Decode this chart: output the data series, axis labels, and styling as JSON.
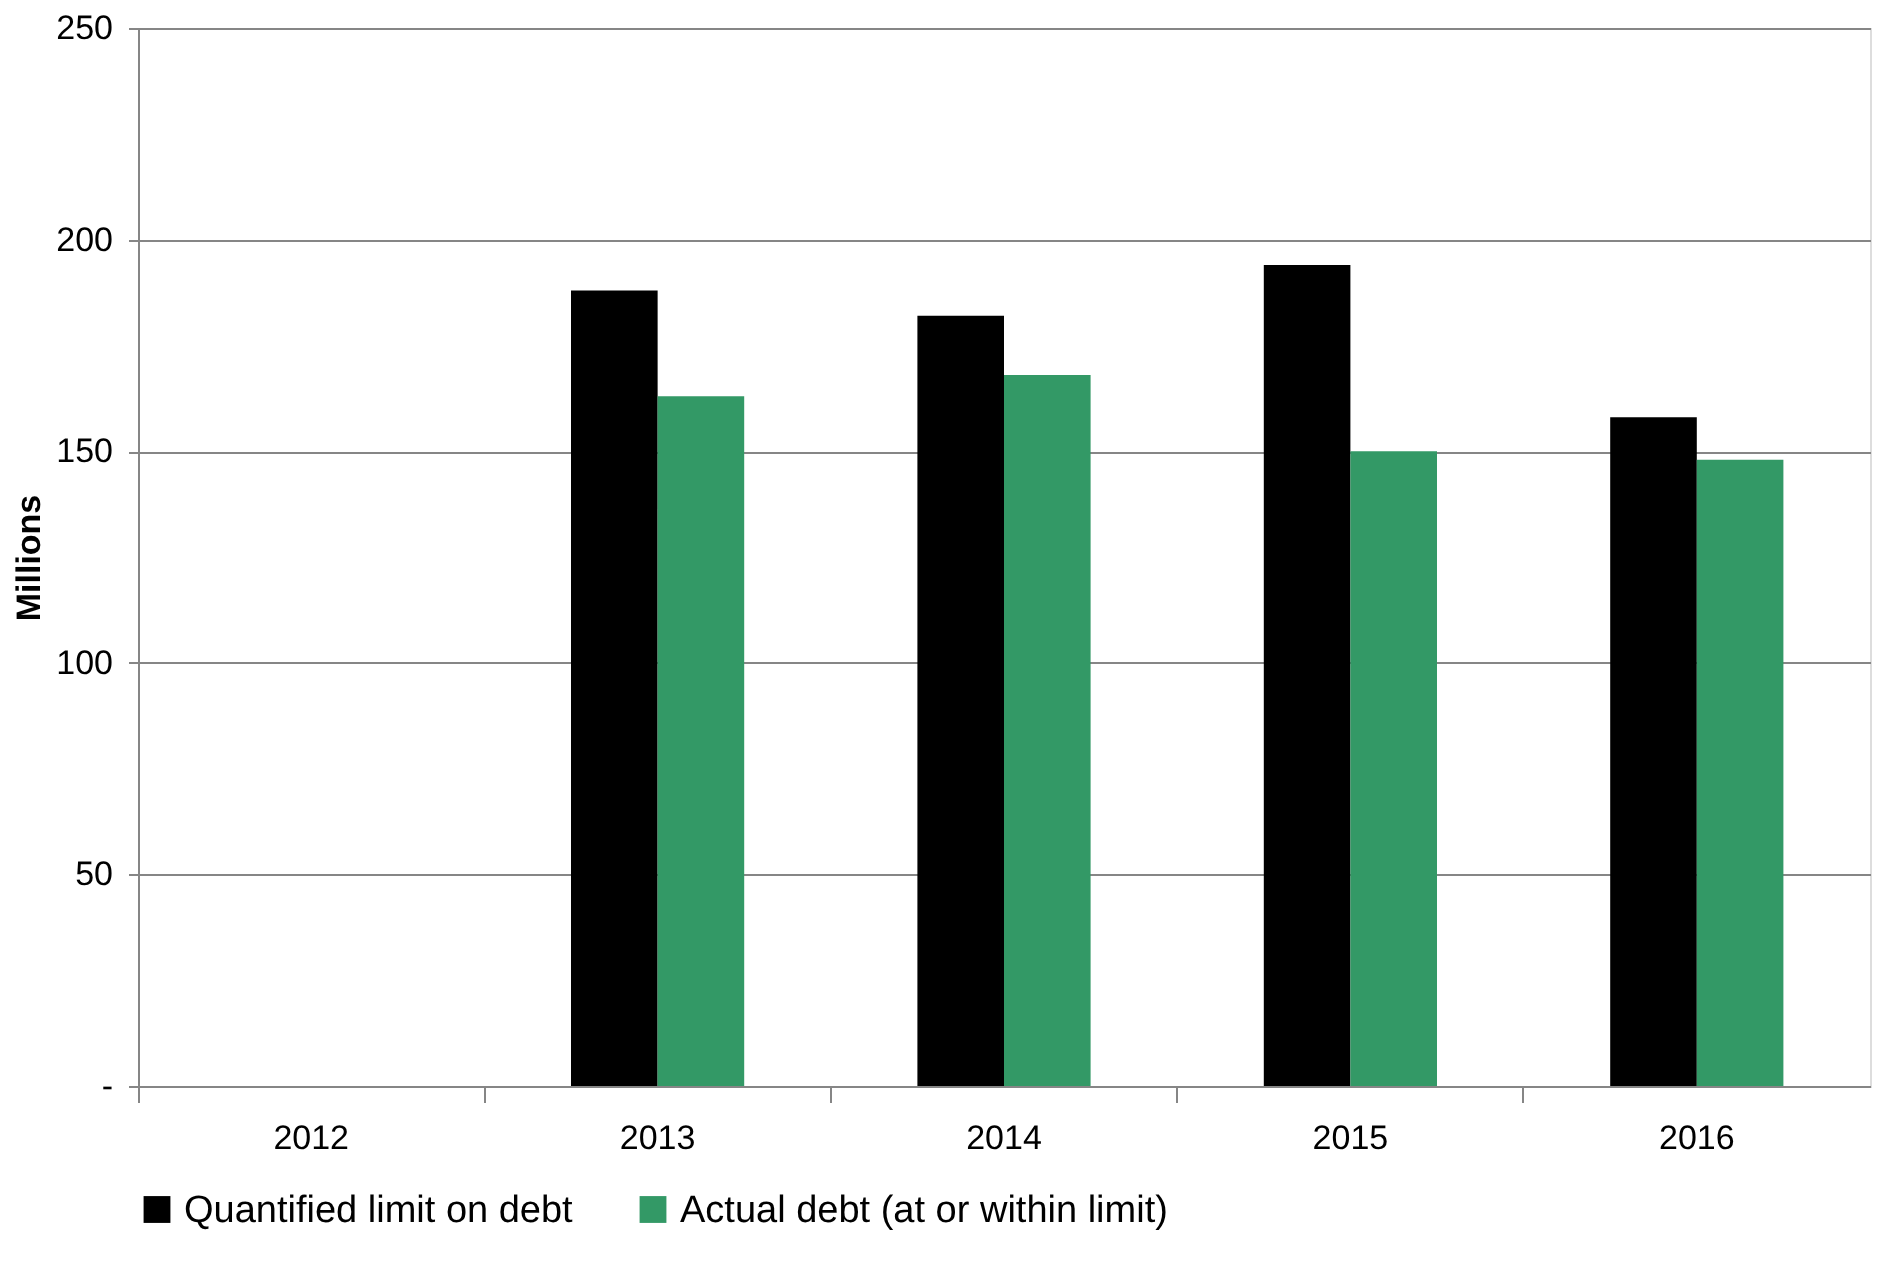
{
  "chart_data": {
    "type": "bar",
    "ylabel": "Millions",
    "categories": [
      "2012",
      "2013",
      "2014",
      "2015",
      "2016"
    ],
    "series": [
      {
        "name": "Quantified limit on debt",
        "color": "#000000",
        "values": [
          null,
          188,
          182,
          194,
          158
        ]
      },
      {
        "name": "Actual debt (at or within limit)",
        "color": "#339966",
        "values": [
          null,
          163,
          168,
          150,
          148
        ]
      }
    ],
    "ylim": [
      0,
      250
    ],
    "yticks": [
      {
        "value": 0,
        "label": "-"
      },
      50,
      100,
      150,
      200,
      250
    ],
    "grid": "y",
    "legend": "bottom"
  }
}
